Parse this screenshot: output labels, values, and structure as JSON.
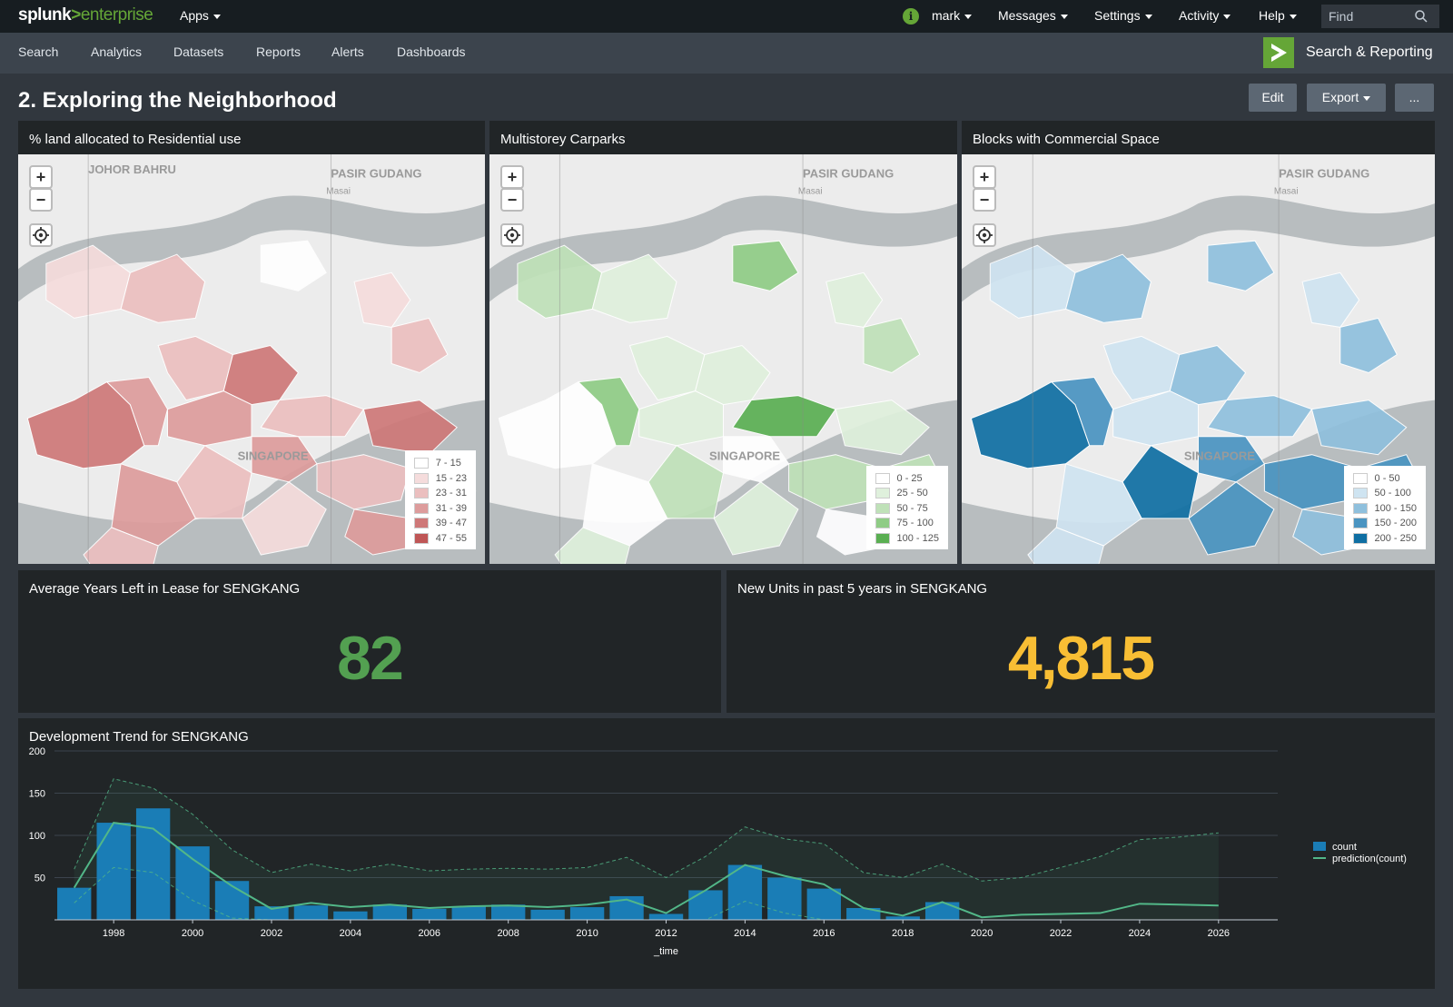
{
  "topbar": {
    "logo": {
      "splunk": "splunk",
      "gt": ">",
      "enterprise": "enterprise"
    },
    "apps_label": "Apps",
    "user_label": "mark",
    "messages_label": "Messages",
    "settings_label": "Settings",
    "activity_label": "Activity",
    "help_label": "Help",
    "find_placeholder": "Find",
    "info_icon": "i"
  },
  "appbar": {
    "items": [
      "Search",
      "Analytics",
      "Datasets",
      "Reports",
      "Alerts",
      "Dashboards"
    ],
    "app_name": "Search & Reporting"
  },
  "page": {
    "title": "2. Exploring the Neighborhood",
    "edit_label": "Edit",
    "export_label": "Export",
    "more_label": "..."
  },
  "maps": [
    {
      "title": "% land allocated to Residential use",
      "place_labels": [
        "JOHOR BAHRU",
        "PASIR GUDANG",
        "Masai",
        "SINGAPORE"
      ],
      "legend": [
        {
          "label": "7 - 15",
          "color": "#ffffff"
        },
        {
          "label": "15 - 23",
          "color": "#f5dcdc"
        },
        {
          "label": "23 - 31",
          "color": "#ebbfbf"
        },
        {
          "label": "31 - 39",
          "color": "#dd9c9c"
        },
        {
          "label": "39 - 47",
          "color": "#ce7878"
        },
        {
          "label": "47 - 55",
          "color": "#bf5656"
        }
      ]
    },
    {
      "title": "Multistorey Carparks",
      "place_labels": [
        "PASIR GUDANG",
        "Masai",
        "SINGAPORE"
      ],
      "legend": [
        {
          "label": "0 - 25",
          "color": "#ffffff"
        },
        {
          "label": "25 - 50",
          "color": "#dff0dc"
        },
        {
          "label": "50 - 75",
          "color": "#bfe1b8"
        },
        {
          "label": "75 - 100",
          "color": "#8fcc85"
        },
        {
          "label": "100 - 125",
          "color": "#5aaf52"
        }
      ]
    },
    {
      "title": "Blocks with Commercial Space",
      "place_labels": [
        "PASIR GUDANG",
        "Masai",
        "SINGAPORE"
      ],
      "legend": [
        {
          "label": "0 - 50",
          "color": "#ffffff"
        },
        {
          "label": "50 - 100",
          "color": "#cfe4f1"
        },
        {
          "label": "100 - 150",
          "color": "#8fc0dd"
        },
        {
          "label": "150 - 200",
          "color": "#4a94c1"
        },
        {
          "label": "200 - 250",
          "color": "#0f6fa3"
        }
      ]
    }
  ],
  "stats": [
    {
      "title": "Average Years Left in Lease for SENGKANG",
      "value": "82",
      "color": "#53a051"
    },
    {
      "title": "New Units in past 5 years in SENGKANG",
      "value": "4,815",
      "color": "#f8be34"
    }
  ],
  "chart_data": {
    "type": "bar",
    "title": "Development Trend for SENGKANG",
    "xlabel": "_time",
    "ylabel": "",
    "ylim": [
      0,
      200
    ],
    "y_ticks": [
      50,
      100,
      150,
      200
    ],
    "x_tick_labels": [
      "1998",
      "2000",
      "2002",
      "2004",
      "2006",
      "2008",
      "2010",
      "2012",
      "2014",
      "2016",
      "2018",
      "2020",
      "2022",
      "2024",
      "2026"
    ],
    "x": [
      1997,
      1998,
      1999,
      2000,
      2001,
      2002,
      2003,
      2004,
      2005,
      2006,
      2007,
      2008,
      2009,
      2010,
      2011,
      2012,
      2013,
      2014,
      2015,
      2016,
      2017,
      2018,
      2019,
      2020,
      2021,
      2022,
      2023,
      2024,
      2025,
      2026
    ],
    "series": [
      {
        "name": "count",
        "color": "#1a7db6",
        "values": [
          38,
          115,
          132,
          87,
          46,
          16,
          17,
          10,
          18,
          13,
          16,
          18,
          12,
          15,
          28,
          7,
          35,
          65,
          50,
          37,
          14,
          4,
          21,
          null,
          null,
          null,
          null,
          null,
          null,
          null
        ]
      },
      {
        "name": "prediction(count)",
        "color": "#52b788",
        "values": [
          38,
          115,
          108,
          72,
          40,
          13,
          20,
          15,
          18,
          14,
          16,
          17,
          15,
          18,
          24,
          8,
          35,
          65,
          52,
          42,
          14,
          5,
          21,
          3,
          6,
          7,
          8,
          19,
          18,
          17
        ]
      }
    ],
    "upper95": [
      60,
      167,
      156,
      125,
      83,
      56,
      66,
      58,
      66,
      58,
      60,
      61,
      60,
      62,
      74,
      50,
      75,
      110,
      96,
      90,
      56,
      50,
      66,
      46,
      50,
      62,
      75,
      95,
      98,
      103
    ],
    "lower95": [
      20,
      62,
      56,
      23,
      2,
      0,
      0,
      0,
      0,
      0,
      0,
      0,
      0,
      0,
      0,
      0,
      0,
      22,
      8,
      0,
      0,
      0,
      0,
      0,
      0,
      0,
      0,
      0,
      0,
      0
    ],
    "legend_placement": "right"
  }
}
